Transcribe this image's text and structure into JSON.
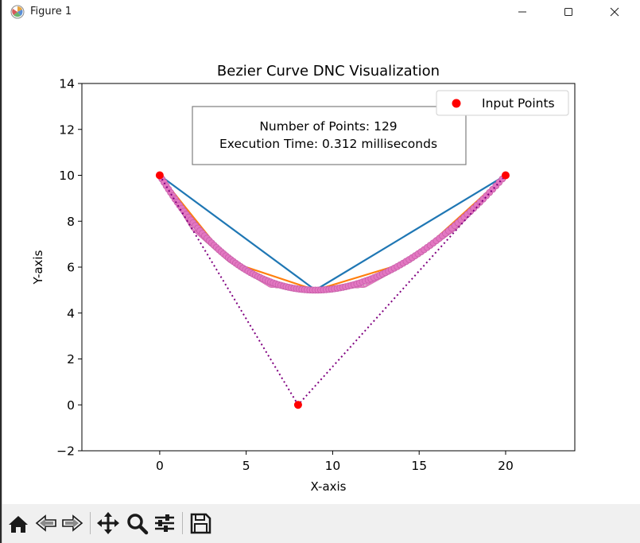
{
  "window": {
    "title": "Figure 1",
    "controls": {
      "minimize": "minimize-icon",
      "maximize": "maximize-icon",
      "close": "close-icon"
    }
  },
  "toolbar": {
    "buttons": [
      "home-icon",
      "back-icon",
      "forward-icon",
      "pan-icon",
      "zoom-icon",
      "configure-subplots-icon",
      "save-icon"
    ]
  },
  "chart_data": {
    "type": "line",
    "title": "Bezier Curve DNC Visualization",
    "xlabel": "X-axis",
    "ylabel": "Y-axis",
    "xlim": [
      -4.5,
      24
    ],
    "ylim": [
      -2,
      14
    ],
    "xticks": [
      0,
      5,
      10,
      15,
      20
    ],
    "yticks": [
      -2,
      0,
      2,
      4,
      6,
      8,
      10,
      12,
      14
    ],
    "grid": false,
    "legend": {
      "placement": "upper-right",
      "entries": [
        "Input Points"
      ]
    },
    "annotation": {
      "line1": "Number of Points: 129",
      "line2": "Execution Time: 0.312 milliseconds",
      "placement": "top-center"
    },
    "control_points": {
      "name": "Input Points",
      "color": "#ff0000",
      "x": [
        0,
        8,
        20
      ],
      "y": [
        10,
        0,
        10
      ]
    },
    "control_polygon": {
      "color": "#800080",
      "style": "dotted",
      "x": [
        0,
        8,
        20
      ],
      "y": [
        10,
        0,
        10
      ]
    },
    "iterations": [
      {
        "color": "#1f77b4",
        "x": [
          0,
          9,
          20
        ],
        "y": [
          10,
          5,
          10
        ]
      },
      {
        "color": "#ff7f0e",
        "x": [
          0,
          4,
          9,
          14.5,
          20
        ],
        "y": [
          10,
          6.25,
          5,
          6.25,
          10
        ]
      },
      {
        "color": "#2ca02c",
        "x": [
          0,
          1.875,
          4,
          6.375,
          9,
          11.875,
          14.5,
          17.125,
          20
        ],
        "y": [
          10,
          7.6563,
          6.25,
          5.1563,
          5,
          5.1563,
          6.25,
          7.6563,
          10
        ]
      },
      {
        "color": "#d62728",
        "x": [
          0,
          1.875,
          4,
          6.375,
          9,
          11.875,
          14.5,
          17.125,
          20
        ],
        "y": [
          10,
          7.6563,
          6.25,
          5.1563,
          5,
          5.1563,
          6.25,
          7.6563,
          10
        ]
      },
      {
        "color": "#9467bd",
        "x": [
          0,
          1.875,
          4,
          6.375,
          9,
          11.875,
          14.5,
          17.125,
          20
        ],
        "y": [
          10,
          7.6563,
          6.25,
          5.1563,
          5,
          5.1563,
          6.25,
          7.6563,
          10
        ]
      },
      {
        "color": "#8c564b",
        "x": [
          0,
          1.875,
          4,
          6.375,
          9,
          11.875,
          14.5,
          17.125,
          20
        ],
        "y": [
          10,
          7.6563,
          6.25,
          5.1563,
          5,
          5.1563,
          6.25,
          7.6563,
          10
        ]
      },
      {
        "color": "#e377c2",
        "x": [
          0,
          1.875,
          4,
          6.375,
          9,
          11.875,
          14.5,
          17.125,
          20
        ],
        "y": [
          10,
          7.6563,
          6.25,
          5.1563,
          5,
          5.1563,
          6.25,
          7.6563,
          10
        ]
      }
    ],
    "final_curve": {
      "color": "#e377c2",
      "markers": true,
      "samples": 129,
      "p0": [
        0,
        10
      ],
      "p1": [
        8,
        0
      ],
      "p2": [
        20,
        10
      ]
    }
  }
}
